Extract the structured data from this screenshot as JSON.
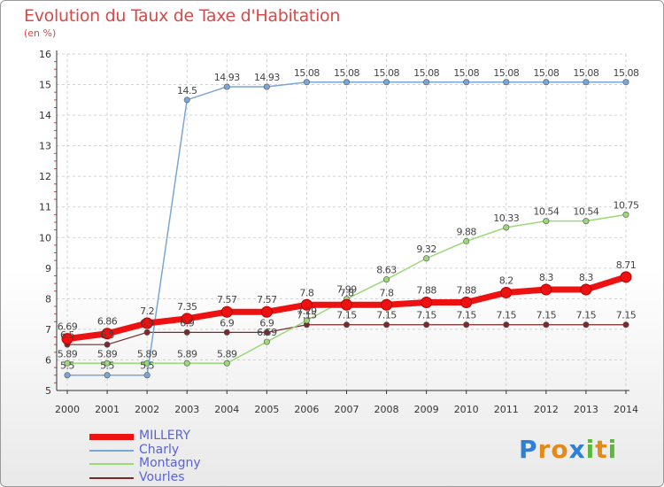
{
  "title": "Evolution du Taux de Taxe d'Habitation",
  "unit_label": "(en %)",
  "brand": {
    "text": "Proxiti",
    "letters": [
      "P",
      "r",
      "o",
      "x",
      "i",
      "t",
      "i"
    ],
    "colors": [
      "#2e7fd6",
      "#e28b1a",
      "#e28b1a",
      "#2e7fd6",
      "#5cb83a",
      "#e28b1a",
      "#5cb83a"
    ]
  },
  "chart_data": {
    "type": "line",
    "x": [
      "2000",
      "2001",
      "2002",
      "2003",
      "2004",
      "2005",
      "2006",
      "2007",
      "2008",
      "2009",
      "2010",
      "2011",
      "2012",
      "2013",
      "2014"
    ],
    "ylim": [
      5,
      16
    ],
    "yticks": [
      "5",
      "6",
      "7",
      "8",
      "9",
      "10",
      "11",
      "12",
      "13",
      "14",
      "15",
      "16"
    ],
    "grid": true,
    "legend_position": "bottom-left",
    "series": [
      {
        "name": "Vourles",
        "color": "#7a2a2a",
        "width": 1.2,
        "values": [
          6.5,
          6.5,
          6.9,
          6.9,
          6.9,
          6.9,
          7.15,
          7.15,
          7.15,
          7.15,
          7.15,
          7.15,
          7.15,
          7.15,
          7.15
        ],
        "labels": [
          "6.5",
          "6.5",
          "6.9",
          "6.9",
          "6.9",
          "6.9",
          "7.15",
          "7.15",
          "7.15",
          "7.15",
          "7.15",
          "7.15",
          "7.15",
          "7.15",
          "7.15"
        ]
      },
      {
        "name": "Montagny",
        "color": "#9ad878",
        "width": 1.5,
        "values": [
          5.89,
          5.89,
          5.89,
          5.89,
          5.89,
          6.59,
          7.29,
          7.99,
          8.63,
          9.32,
          9.88,
          10.33,
          10.54,
          10.54,
          10.75
        ],
        "labels": [
          "5.89",
          "5.89",
          "5.89",
          "5.89",
          "5.89",
          "6.59",
          "7.29",
          "7.99",
          "8.63",
          "9.32",
          "9.88",
          "10.33",
          "10.54",
          "10.54",
          "10.75"
        ]
      },
      {
        "name": "Charly",
        "color": "#7aa6d6",
        "width": 1.5,
        "values": [
          5.5,
          5.5,
          5.5,
          14.5,
          14.93,
          14.93,
          15.08,
          15.08,
          15.08,
          15.08,
          15.08,
          15.08,
          15.08,
          15.08,
          15.08
        ],
        "labels": [
          "5.5",
          "5.5",
          "5.5",
          "14.5",
          "14.93",
          "14.93",
          "15.08",
          "15.08",
          "15.08",
          "15.08",
          "15.08",
          "15.08",
          "15.08",
          "15.08",
          "15.08"
        ]
      },
      {
        "name": "MILLERY",
        "color": "#ee1111",
        "width": 7,
        "values": [
          6.69,
          6.86,
          7.2,
          7.35,
          7.57,
          7.57,
          7.8,
          7.8,
          7.8,
          7.88,
          7.88,
          8.2,
          8.3,
          8.3,
          8.71
        ],
        "labels": [
          "6.69",
          "6.86",
          "7.2",
          "7.35",
          "7.57",
          "7.57",
          "7.8",
          "7.8",
          "7.8",
          "7.88",
          "7.88",
          "8.2",
          "8.3",
          "8.3",
          "8.71"
        ]
      }
    ],
    "legend": [
      "MILLERY",
      "Charly",
      "Montagny",
      "Vourles"
    ]
  }
}
